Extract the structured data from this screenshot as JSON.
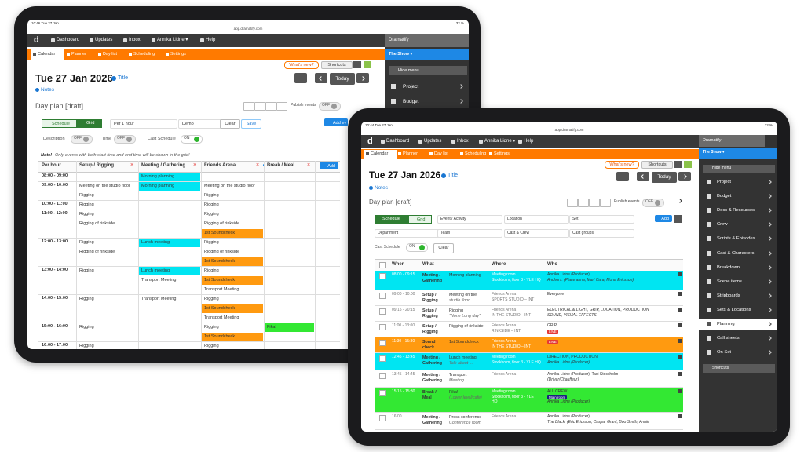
{
  "left": {
    "status": "10:46  Tue 27 Jan",
    "url": "app.dramatify.com",
    "battery": "32 %",
    "logo": "d",
    "nav": [
      "Dashboard",
      "Updates",
      "Inbox",
      "Annika Lidne ▾",
      "Help"
    ],
    "brand": "Dramatify",
    "show": "The Show ▾",
    "hide_menu": "Hide menu",
    "menu": [
      "Project",
      "Budget"
    ],
    "tabs": [
      "Calendar",
      "Planner",
      "Day list",
      "Scheduling",
      "Settings"
    ],
    "whats_new": "What's new?",
    "shortcuts": "Shortcuts",
    "date": "Tue 27 Jan 2026",
    "title_link": "Title",
    "notes": "Notes",
    "today": "Today",
    "day_plan": "Day plan [draft]",
    "publish": "Publish events",
    "publish_state": "OFF",
    "views": [
      "Schedule",
      "Grid"
    ],
    "interval": "Per 1 hour",
    "preset": "Demo",
    "clear": "Clear",
    "save": "Save",
    "add_event": "Add ev",
    "toggles": [
      {
        "label": "Description",
        "state": "OFF"
      },
      {
        "label": "Time",
        "state": "OFF"
      },
      {
        "label": "Cast Schedule",
        "state": "ON"
      }
    ],
    "note_bold": "Note!",
    "note": "Only events with both start time and end time will be shown in the grid!",
    "grid_headers": [
      "Per hour",
      "Setup / Rigging",
      "Meeting / Gathering",
      "Friends Arena",
      "Break / Meal"
    ],
    "add": "Add",
    "grid_rows": [
      {
        "time": "08:00 - 09:00",
        "cells": [
          [],
          [
            {
              "text": "Morning planning",
              "color": "#00e5f2"
            }
          ],
          [],
          []
        ]
      },
      {
        "time": "09:00 - 10:00",
        "cells": [
          [
            "Meeting on the studio floor",
            "Rigging"
          ],
          [
            {
              "text": "Morning planning",
              "color": "#00e5f2"
            }
          ],
          [
            "Meeting on the studio floor",
            "Rigging"
          ],
          []
        ]
      },
      {
        "time": "10:00 - 11:00",
        "cells": [
          [
            "Rigging"
          ],
          [],
          [
            "Rigging"
          ],
          []
        ]
      },
      {
        "time": "11:00 - 12:00",
        "cells": [
          [
            "Rigging",
            "Rigging of rinkside"
          ],
          [],
          [
            "Rigging",
            "Rigging of rinkside",
            {
              "text": "1st Soundcheck",
              "color": "#ff9a10"
            }
          ],
          []
        ]
      },
      {
        "time": "12:00 - 13:00",
        "cells": [
          [
            "Rigging",
            "Rigging of rinkside"
          ],
          [
            {
              "text": "Lunch meeting",
              "color": "#00e5f2"
            }
          ],
          [
            "Rigging",
            "Rigging of rinkside",
            {
              "text": "1st Soundcheck",
              "color": "#ff9a10"
            }
          ],
          []
        ]
      },
      {
        "time": "13:00 - 14:00",
        "cells": [
          [
            "Rigging"
          ],
          [
            {
              "text": "Lunch meeting",
              "color": "#00e5f2"
            },
            "Transport Meeting"
          ],
          [
            "Rigging",
            {
              "text": "1st Soundcheck",
              "color": "#ff9a10"
            },
            "Transport Meeting"
          ],
          []
        ]
      },
      {
        "time": "14:00 - 15:00",
        "cells": [
          [
            "Rigging"
          ],
          [
            "Transport Meeting"
          ],
          [
            "Rigging",
            {
              "text": "1st Soundcheck",
              "color": "#ff9a10"
            },
            "Transport Meeting"
          ],
          []
        ]
      },
      {
        "time": "15:00 - 16:00",
        "cells": [
          [
            "Rigging"
          ],
          [],
          [
            "Rigging",
            {
              "text": "1st Soundcheck",
              "color": "#ff9a10"
            }
          ],
          [
            {
              "text": "Fika!",
              "color": "#33e833"
            }
          ]
        ]
      },
      {
        "time": "16:00 - 17:00",
        "cells": [
          [
            "Rigging"
          ],
          [],
          [
            "Rigging"
          ],
          []
        ]
      }
    ]
  },
  "right": {
    "status": "10:44  Tue 27 Jan",
    "url": "app.dramatify.com",
    "battery": "32 %",
    "logo": "d",
    "nav": [
      "Dashboard",
      "Updates",
      "Inbox",
      "Annika Lidne ▾",
      "Help"
    ],
    "brand": "Dramatify",
    "show": "The Show ▾",
    "hide_menu": "Hide menu",
    "menu": [
      "Project",
      "Budget",
      "Docs & Resources",
      "Crew",
      "Scripts & Episodes",
      "Cast & Characters",
      "Breakdown",
      "Scene items",
      "Stripboards",
      "Sets & Locations",
      "Planning",
      "Call sheets",
      "On Set"
    ],
    "active_menu": "Planning",
    "shortcuts_menu": "Shortcuts",
    "tabs": [
      "Calendar",
      "Planner",
      "Day list",
      "Scheduling",
      "Settings"
    ],
    "whats_new": "What's new?",
    "shortcuts": "Shortcuts",
    "date": "Tue 27 Jan 2026",
    "title_link": "Title",
    "notes": "Notes",
    "today": "Today",
    "day_plan": "Day plan [draft]",
    "publish": "Publish events",
    "publish_state": "OFF",
    "views": [
      "Schedule",
      "Grid"
    ],
    "add": "Add",
    "filters": [
      "Event / Activity",
      "Location",
      "Set",
      "Department",
      "Team",
      "Cast & Crew",
      "Cast groups"
    ],
    "cast_schedule": "Cast Schedule",
    "cast_state": "ON",
    "clear": "Clear",
    "headers": [
      "When",
      "What",
      "Where",
      "Who"
    ],
    "rows": [
      {
        "time": "08:00 - 09:15",
        "type": [
          "Meeting /",
          "Gathering"
        ],
        "what": [
          "Morning planning"
        ],
        "where": [
          "Meeting room",
          "Stockholm, floor 3 - YLE HQ"
        ],
        "who": [
          "Annika Lidne (Producer)",
          "Anchors: (Place anna, Mari Cara, Mona Ericsson)"
        ],
        "color": "#00e5f2"
      },
      {
        "time": "09:00 - 10:00",
        "type": [
          "Setup /",
          "Rigging"
        ],
        "what": [
          "Meeting on the",
          "studio floor"
        ],
        "where": [
          "Friends Arena",
          "SPORTS STUDIO – INT"
        ],
        "who": [
          "Everyone"
        ]
      },
      {
        "time": "09:15 - 20:15",
        "type": [
          "Setup /",
          "Rigging"
        ],
        "what": [
          "Rigging",
          "*None Long day*"
        ],
        "where": [
          "Friends Arena",
          "IN THE STUDIO – INT"
        ],
        "who": [
          "ELECTRICAL & LIGHT, GRIP, LOCATION, PRODUCTION",
          "SOUND, VISUAL EFFECTS"
        ]
      },
      {
        "time": "11:00 - 13:00",
        "type": [
          "Setup /",
          "Rigging"
        ],
        "what": [
          "Rigging of rinkside"
        ],
        "where": [
          "Friends Arena",
          "RINKSIDE – INT"
        ],
        "who": [
          "GRIP",
          {
            "badge": "LIVE",
            "color": "#e53935"
          }
        ]
      },
      {
        "time": "11:30 - 15:30",
        "type": [
          "Sound",
          "check"
        ],
        "what": [
          "1st Soundcheck"
        ],
        "where": [
          "Friends Arena",
          "IN THE STUDIO – INT"
        ],
        "who": [
          {
            "badge": "LIVE",
            "color": "#e53935"
          }
        ],
        "color": "#ff9a10"
      },
      {
        "time": "12:45 - 13:45",
        "type": [
          "Meeting /",
          "Gathering"
        ],
        "what": [
          "Lunch meeting",
          "Talk about ..."
        ],
        "where": [
          "Meeting room",
          "Stockholm, floor 3 - YLE HQ"
        ],
        "who": [
          "DIRECTION, PRODUCTION",
          "Annika Lidne (Producer)"
        ],
        "color": "#00e5f2"
      },
      {
        "time": "13:45 - 14:45",
        "type": [
          "Meeting /",
          "Gathering"
        ],
        "what": [
          "Transport",
          "Meeting"
        ],
        "where": [
          "Friends Arena"
        ],
        "who": [
          "Annika Lidne (Producer), Taxi Stockholm",
          "(Driver/Chauffeur)"
        ]
      },
      {
        "time": "15:15 - 15:30",
        "type": [
          "Break /",
          "Meal"
        ],
        "what": [
          "Fika!",
          "(Lower level/cafe)"
        ],
        "where": [
          "Meeting room",
          "Stockholm, floor 3 - YLE",
          "HQ"
        ],
        "who": [
          "ALL CREW",
          {
            "badge": "Main room",
            "color": "#1a237e"
          },
          "Annika Lidne (Producer)"
        ],
        "color": "#33e833"
      },
      {
        "time": "16:00",
        "type": [
          "Meeting /",
          "Gathering"
        ],
        "what": [
          "Press conference",
          "Conference room"
        ],
        "where": [
          "Friends Arena"
        ],
        "who": [
          "Annika Lidne (Producer)",
          "The Black: (Eric Ericsson, Caspar Grant, Boo Smith, Annie"
        ]
      }
    ]
  }
}
